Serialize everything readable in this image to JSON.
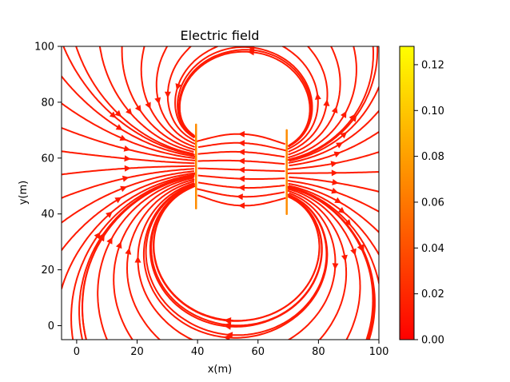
{
  "chart_data": {
    "type": "streamplot",
    "title": "Electric field",
    "xlabel": "x(m)",
    "ylabel": "y(m)",
    "xlim": [
      -5,
      100
    ],
    "ylim": [
      -5,
      100
    ],
    "xticks": [
      0,
      20,
      40,
      60,
      80,
      100
    ],
    "yticks": [
      0,
      20,
      40,
      60,
      80,
      100
    ],
    "grid": false,
    "electrodes": [
      {
        "x": 39.5,
        "y_range": [
          42,
          72
        ]
      },
      {
        "x": 69.5,
        "y_range": [
          40,
          70
        ]
      }
    ],
    "colorbar": {
      "colormap": "autumn",
      "range": [
        0,
        0.128
      ],
      "ticks": [
        0.0,
        0.02,
        0.04,
        0.06,
        0.08,
        0.1,
        0.12
      ],
      "tick_labels": [
        "0.00",
        "0.02",
        "0.04",
        "0.06",
        "0.08",
        "0.10",
        "0.12"
      ],
      "color_low": "#ff0000",
      "color_high": "#ffff00"
    },
    "stream_color": "#ff1a00"
  }
}
